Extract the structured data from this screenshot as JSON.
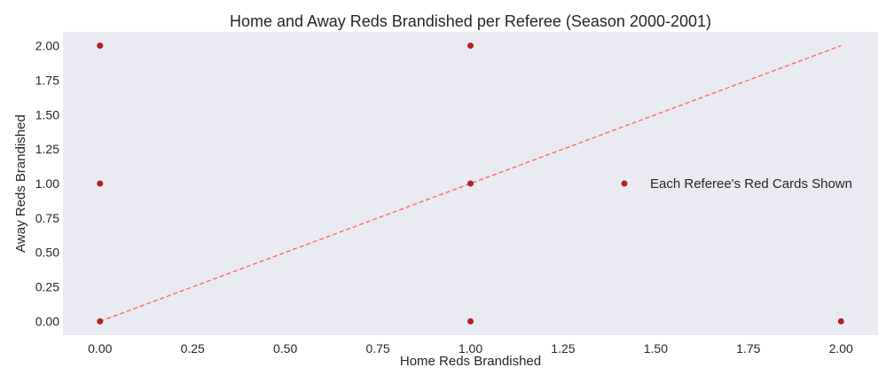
{
  "chart_data": {
    "type": "scatter",
    "title": "Home and Away Reds Brandished per Referee (Season 2000-2001)",
    "xlabel": "Home Reds Brandished",
    "ylabel": "Away Reds Brandished",
    "xlim": [
      -0.1,
      2.1
    ],
    "ylim": [
      -0.1,
      2.1
    ],
    "xticks": [
      "0.00",
      "0.25",
      "0.50",
      "0.75",
      "1.00",
      "1.25",
      "1.50",
      "1.75",
      "2.00"
    ],
    "yticks": [
      "0.00",
      "0.25",
      "0.50",
      "0.75",
      "1.00",
      "1.25",
      "1.50",
      "1.75",
      "2.00"
    ],
    "grid": false,
    "legend_position": "center-right",
    "series": [
      {
        "name": "Each Referee's Red Cards Shown",
        "color": "#b22222",
        "points": [
          {
            "x": 0,
            "y": 2
          },
          {
            "x": 0,
            "y": 1
          },
          {
            "x": 0,
            "y": 0
          },
          {
            "x": 1,
            "y": 2
          },
          {
            "x": 1,
            "y": 1
          },
          {
            "x": 1,
            "y": 0
          },
          {
            "x": 2,
            "y": 0
          }
        ]
      }
    ],
    "reference_line": {
      "from": {
        "x": 0,
        "y": 0
      },
      "to": {
        "x": 2,
        "y": 2
      },
      "style": "dashed",
      "color": "#ff6347"
    },
    "background_color": "#eaeaf2"
  }
}
